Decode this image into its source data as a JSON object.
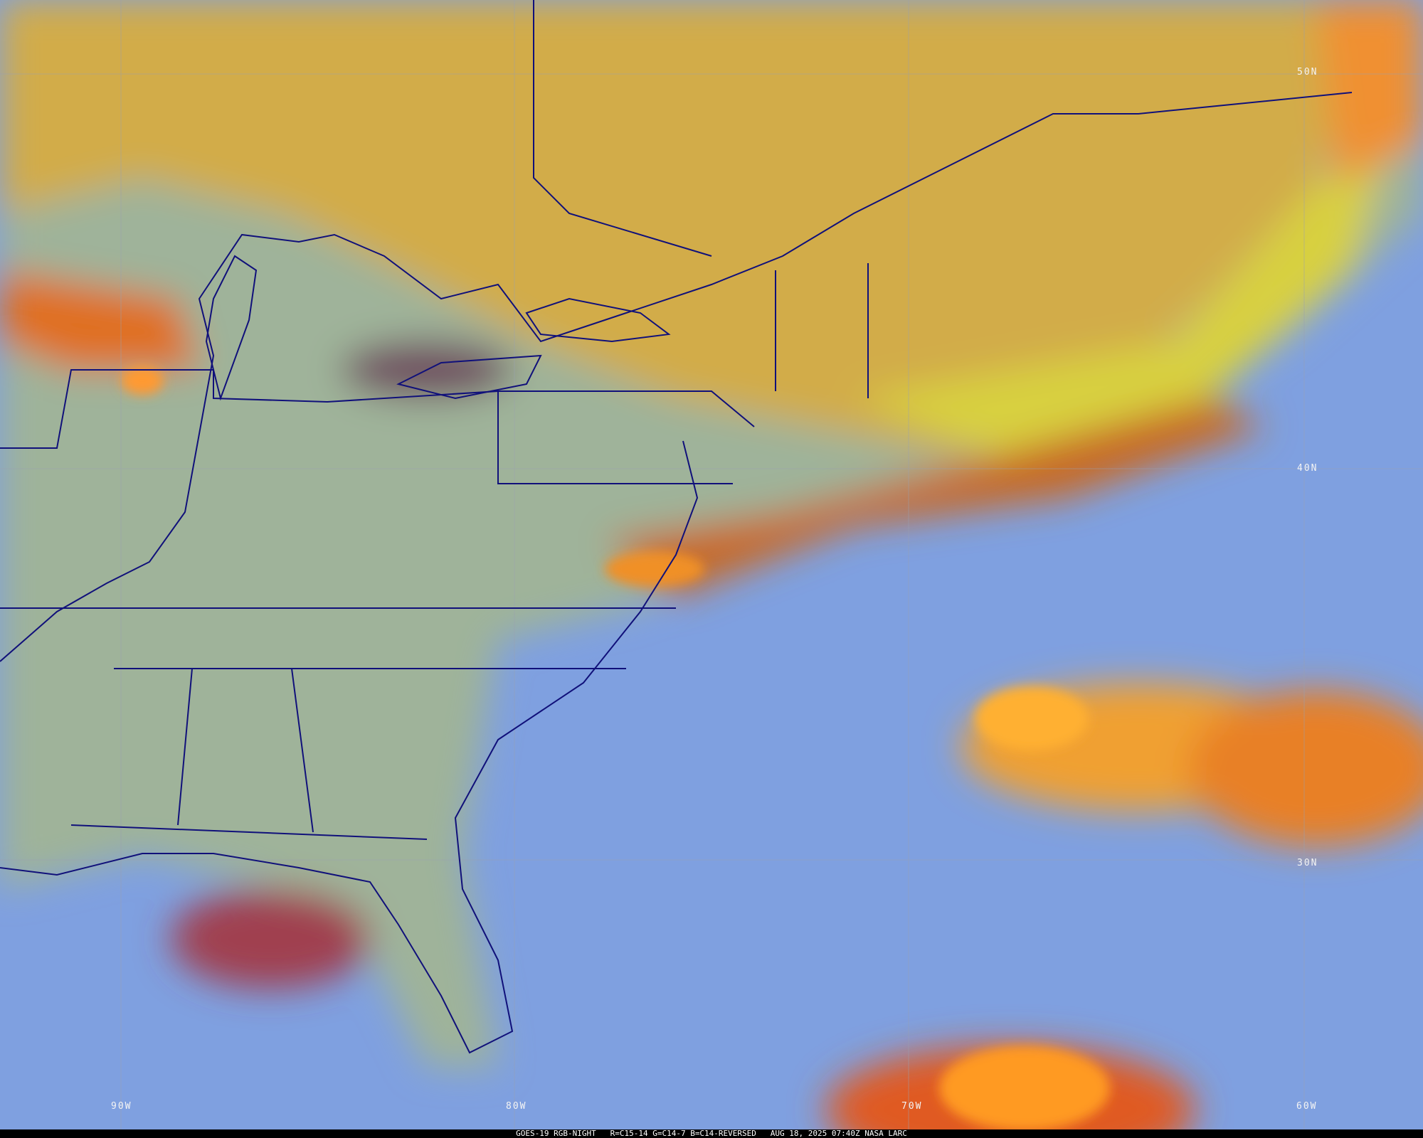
{
  "caption": "GOES-19 RGB-NIGHT   R=C15-14 G=C14-7 B=C14-REVERSED   AUG 18, 2025 07:40Z NASA LARC",
  "latitude_labels": [
    "50N",
    "40N",
    "30N"
  ],
  "longitude_labels": [
    "90W",
    "80W",
    "70W",
    "60W"
  ],
  "colors": {
    "ocean_clear": "#7fa0e0",
    "land_clear": "#9fb8a0",
    "high_cloud": "#d8b040",
    "deep_convection": "#f08a20",
    "boundaries": "#10107a"
  }
}
